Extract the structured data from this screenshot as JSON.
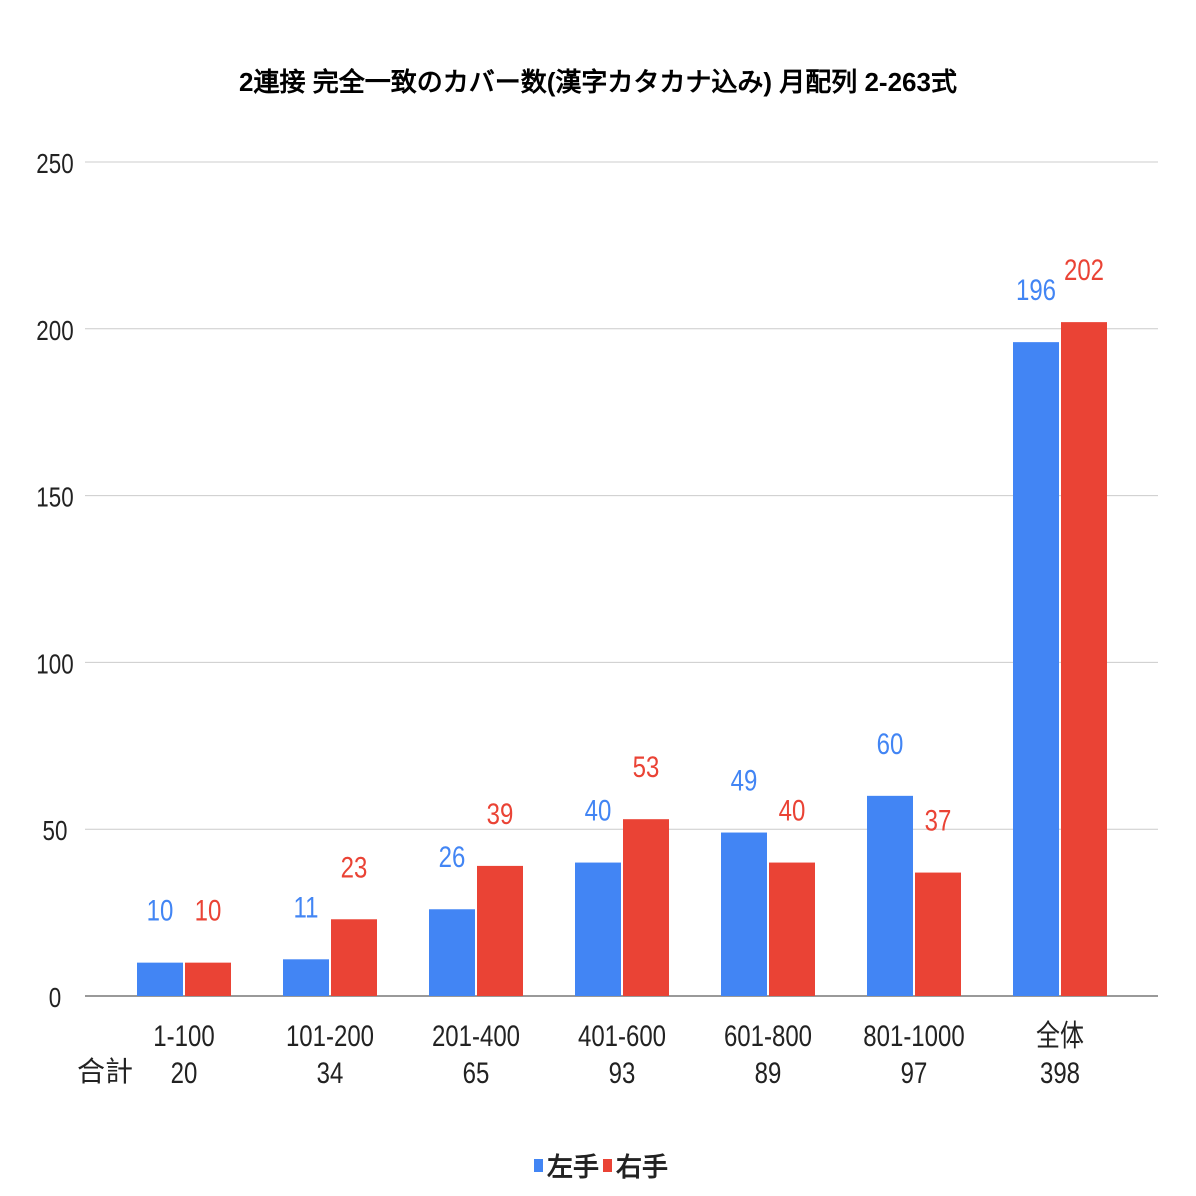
{
  "chart_data": {
    "type": "bar",
    "title": "2連接 完全一致のカバー数(漢字カタカナ込み) 月配列 2-263式",
    "categories": [
      "1-100",
      "101-200",
      "201-400",
      "401-600",
      "601-800",
      "801-1000",
      "全体"
    ],
    "totals_label": "合計",
    "totals": [
      "20",
      "34",
      "65",
      "93",
      "89",
      "97",
      "398"
    ],
    "series": [
      {
        "name": "左手",
        "color": "#4285f4",
        "values": [
          10,
          11,
          26,
          40,
          49,
          60,
          196
        ]
      },
      {
        "name": "右手",
        "color": "#ea4335",
        "values": [
          10,
          23,
          39,
          53,
          40,
          37,
          202
        ]
      }
    ],
    "ylim": [
      0,
      250
    ],
    "yticks": [
      0,
      50,
      100,
      150,
      200,
      250
    ],
    "grid": true,
    "legend": "bottom",
    "xlabel": "",
    "ylabel": ""
  }
}
